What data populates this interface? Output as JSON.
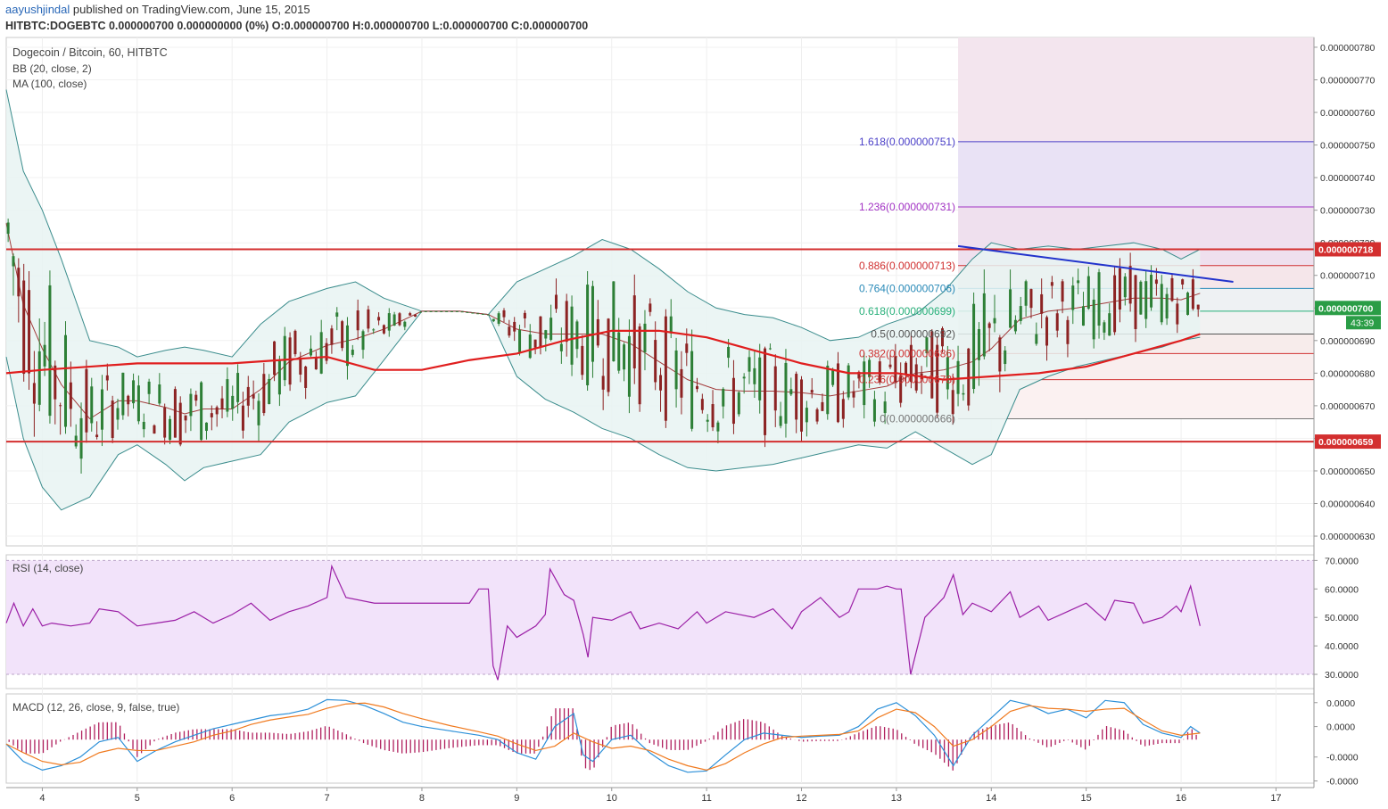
{
  "header": {
    "author": "aayushjindal",
    "published": " published on TradingView.com, June 15, 2015",
    "quote": "HITBTC:DOGEBTC 0.000000700 0.000000000 (0%) O:0.000000700 H:0.000000700 L:0.000000700 C:0.000000700"
  },
  "legend": {
    "symbol": "Dogecoin / Bitcoin, 60, HITBTC",
    "bb": "BB (20, close, 2)",
    "ma": "MA (100, close)",
    "rsi": "RSI (14, close)",
    "macd": "MACD (12, 26, close, 9, false, true)"
  },
  "colors": {
    "up": "#2d7f36",
    "down": "#8c2323",
    "ma": "#e01e1e",
    "bb": "#3a8c8c",
    "bb_fill": "#e7f3f2",
    "hline": "#d32f2f",
    "trendline": "#2233cc",
    "rsi": "#9b1fa6",
    "rsi_bg": "#f2e3fa",
    "macd": "#2b8fd8",
    "signal": "#f07a1f",
    "hist": "#b0205e"
  },
  "chart_data": [
    {
      "type": "candlestick",
      "title": "Dogecoin / Bitcoin, 60, HITBTC",
      "x_ticks": [
        "4",
        "5",
        "6",
        "7",
        "8",
        "9",
        "10",
        "11",
        "12",
        "13",
        "14",
        "15",
        "16",
        "17"
      ],
      "y_ticks": [
        "0.000000780",
        "0.000000770",
        "0.000000760",
        "0.000000750",
        "0.000000740",
        "0.000000730",
        "0.000000720",
        "0.000000710",
        "0.000000700",
        "0.000000690",
        "0.000000680",
        "0.000000670",
        "0.000000660",
        "0.000000650",
        "0.000000640",
        "0.000000630"
      ],
      "ylim": [
        6.27e-07,
        7.83e-07
      ],
      "xlim": [
        3.62,
        17.4
      ],
      "series": [
        {
          "name": "BB (20, close, 2)",
          "kind": "band",
          "x": [
            3.62,
            3.8,
            4.0,
            4.2,
            4.5,
            4.8,
            5.0,
            5.3,
            5.5,
            5.7,
            6.0,
            6.3,
            6.6,
            7.0,
            7.3,
            7.6,
            8.0,
            8.4,
            8.7,
            9.0,
            9.3,
            9.6,
            9.9,
            10.2,
            10.5,
            10.8,
            11.1,
            11.4,
            11.7,
            12.0,
            12.3,
            12.6,
            12.9,
            13.2,
            13.5,
            13.8,
            14.0,
            14.3,
            14.6,
            14.9,
            15.2,
            15.5,
            15.8,
            16.0,
            16.2
          ],
          "upper": [
            7.67e-07,
            7.42e-07,
            7.3e-07,
            7.15e-07,
            6.9e-07,
            6.88e-07,
            6.85e-07,
            6.87e-07,
            6.88e-07,
            6.87e-07,
            6.85e-07,
            6.95e-07,
            7.02e-07,
            7.06e-07,
            7.08e-07,
            7.03e-07,
            6.99e-07,
            6.99e-07,
            6.98e-07,
            7.08e-07,
            7.12e-07,
            7.16e-07,
            7.21e-07,
            7.18e-07,
            7.12e-07,
            7.05e-07,
            7e-07,
            6.98e-07,
            6.97e-07,
            6.94e-07,
            6.9e-07,
            6.91e-07,
            6.95e-07,
            6.98e-07,
            7.05e-07,
            7.15e-07,
            7.2e-07,
            7.18e-07,
            7.19e-07,
            7.18e-07,
            7.19e-07,
            7.2e-07,
            7.18e-07,
            7.15e-07,
            7.18e-07
          ],
          "lower": [
            6.85e-07,
            6.6e-07,
            6.45e-07,
            6.38e-07,
            6.42e-07,
            6.55e-07,
            6.58e-07,
            6.52e-07,
            6.47e-07,
            6.51e-07,
            6.53e-07,
            6.55e-07,
            6.65e-07,
            6.71e-07,
            6.73e-07,
            6.84e-07,
            6.99e-07,
            6.99e-07,
            6.98e-07,
            6.79e-07,
            6.72e-07,
            6.68e-07,
            6.63e-07,
            6.6e-07,
            6.55e-07,
            6.51e-07,
            6.5e-07,
            6.51e-07,
            6.52e-07,
            6.54e-07,
            6.56e-07,
            6.58e-07,
            6.57e-07,
            6.62e-07,
            6.57e-07,
            6.52e-07,
            6.55e-07,
            6.75e-07,
            6.79e-07,
            6.82e-07,
            6.84e-07,
            6.86e-07,
            6.88e-07,
            6.9e-07,
            6.91e-07
          ]
        },
        {
          "name": "MA (100, close)",
          "kind": "line",
          "x": [
            3.62,
            4.0,
            4.5,
            5.0,
            5.5,
            6.0,
            6.5,
            7.0,
            7.5,
            8.0,
            8.5,
            9.0,
            9.5,
            10.0,
            10.5,
            11.0,
            11.5,
            12.0,
            12.5,
            13.0,
            13.5,
            14.0,
            14.5,
            15.0,
            15.5,
            16.0,
            16.2
          ],
          "y": [
            6.8e-07,
            6.81e-07,
            6.82e-07,
            6.83e-07,
            6.83e-07,
            6.83e-07,
            6.84e-07,
            6.85e-07,
            6.81e-07,
            6.81e-07,
            6.84e-07,
            6.86e-07,
            6.9e-07,
            6.93e-07,
            6.93e-07,
            6.91e-07,
            6.87e-07,
            6.83e-07,
            6.8e-07,
            6.8e-07,
            6.78e-07,
            6.79e-07,
            6.8e-07,
            6.82e-07,
            6.86e-07,
            6.9e-07,
            6.92e-07
          ]
        }
      ],
      "horizontal_lines": [
        {
          "label": "0.000000718",
          "value": 7.18e-07
        },
        {
          "label": "0.000000659",
          "value": 6.59e-07
        }
      ],
      "trendline": {
        "x": [
          13.65,
          16.55
        ],
        "y": [
          7.19e-07,
          7.08e-07
        ]
      },
      "price_marker": {
        "label": "0.000000700",
        "countdown": "43:39",
        "value": 7e-07
      },
      "fibonacci": {
        "x_start": 13.65,
        "levels": [
          {
            "label": "1.618(0.000000751)",
            "value": 7.51e-07,
            "color": "#4a3fc8"
          },
          {
            "label": "1.236(0.000000731)",
            "value": 7.31e-07,
            "color": "#a232c4"
          },
          {
            "label": "0.886(0.000000713)",
            "value": 7.13e-07,
            "color": "#d03030"
          },
          {
            "label": "0.764(0.000000706)",
            "value": 7.06e-07,
            "color": "#2a8ab8"
          },
          {
            "label": "0.618(0.000000699)",
            "value": 6.99e-07,
            "color": "#28b07a"
          },
          {
            "label": "0.5(0.000000692)",
            "value": 6.92e-07,
            "color": "#555555"
          },
          {
            "label": "0.382(0.000000686)",
            "value": 6.86e-07,
            "color": "#d03030"
          },
          {
            "label": "0.236(0.000000678)",
            "value": 6.78e-07,
            "color": "#d03030"
          },
          {
            "label": "0(0.000000666)",
            "value": 6.66e-07,
            "color": "#777777"
          }
        ]
      }
    },
    {
      "type": "line",
      "title": "RSI (14, close)",
      "y_ticks": [
        "70.0000",
        "60.0000",
        "50.0000",
        "40.0000",
        "30.0000"
      ],
      "ylim": [
        25,
        72
      ],
      "bands": [
        30,
        70
      ],
      "series": [
        {
          "name": "RSI (14, close)",
          "x": [
            3.62,
            3.7,
            3.8,
            3.9,
            4.0,
            4.1,
            4.3,
            4.5,
            4.6,
            4.8,
            5.0,
            5.2,
            5.4,
            5.6,
            5.8,
            6.0,
            6.2,
            6.4,
            6.6,
            6.8,
            7.0,
            7.05,
            7.2,
            7.5,
            8.0,
            8.5,
            8.6,
            8.7,
            8.75,
            8.8,
            8.9,
            9.0,
            9.2,
            9.3,
            9.35,
            9.5,
            9.6,
            9.7,
            9.75,
            9.8,
            10.0,
            10.2,
            10.3,
            10.5,
            10.7,
            10.9,
            11.0,
            11.2,
            11.5,
            11.7,
            11.9,
            12.0,
            12.2,
            12.4,
            12.5,
            12.6,
            12.8,
            12.9,
            13.0,
            13.05,
            13.15,
            13.3,
            13.5,
            13.6,
            13.7,
            13.8,
            14.0,
            14.2,
            14.3,
            14.5,
            14.6,
            14.8,
            15.0,
            15.2,
            15.3,
            15.5,
            15.6,
            15.8,
            15.95,
            16.0,
            16.1,
            16.2
          ],
          "y": [
            48,
            55,
            47,
            53,
            47,
            48,
            47,
            48,
            53,
            52,
            47,
            48,
            49,
            52,
            48,
            51,
            55,
            49,
            52,
            54,
            57,
            68,
            57,
            55,
            55,
            55,
            60,
            60,
            33,
            28,
            47,
            43,
            47,
            51,
            67,
            58,
            56,
            44,
            36,
            50,
            49,
            52,
            46,
            48,
            46,
            52,
            48,
            52,
            50,
            53,
            46,
            52,
            57,
            50,
            52,
            60,
            60,
            61,
            60,
            60,
            30,
            50,
            57,
            65,
            51,
            55,
            52,
            59,
            50,
            54,
            49,
            52,
            55,
            49,
            56,
            55,
            48,
            50,
            54,
            52,
            61,
            47
          ]
        }
      ]
    },
    {
      "type": "line",
      "title": "MACD (12, 26, close, 9, false, true)",
      "y_ticks": [
        "0.0000",
        "0.0000",
        "-0.0000",
        "-0.0000"
      ],
      "ylim": [
        -1.0,
        1.05
      ],
      "series": [
        {
          "name": "MACD",
          "x": [
            3.62,
            3.8,
            4.0,
            4.2,
            4.4,
            4.6,
            4.8,
            5.0,
            5.2,
            5.4,
            5.6,
            5.8,
            6.0,
            6.2,
            6.4,
            6.6,
            6.8,
            7.0,
            7.2,
            7.4,
            7.6,
            7.8,
            8.0,
            8.3,
            8.6,
            8.8,
            9.0,
            9.2,
            9.4,
            9.6,
            9.7,
            9.8,
            10.0,
            10.2,
            10.4,
            10.6,
            10.8,
            11.0,
            11.2,
            11.4,
            11.6,
            11.8,
            12.0,
            12.2,
            12.4,
            12.6,
            12.8,
            13.0,
            13.2,
            13.4,
            13.6,
            13.8,
            14.0,
            14.2,
            14.4,
            14.6,
            14.8,
            15.0,
            15.2,
            15.4,
            15.6,
            15.8,
            16.0,
            16.1,
            16.2
          ],
          "y": [
            -0.1,
            -0.5,
            -0.7,
            -0.6,
            -0.4,
            -0.05,
            0.05,
            -0.5,
            -0.25,
            -0.05,
            0.1,
            0.25,
            0.35,
            0.45,
            0.55,
            0.6,
            0.7,
            0.92,
            0.9,
            0.78,
            0.6,
            0.4,
            0.3,
            0.2,
            0.1,
            0.0,
            -0.3,
            -0.45,
            0.3,
            0.6,
            -0.35,
            -0.5,
            0.0,
            0.1,
            -0.3,
            -0.6,
            -0.75,
            -0.72,
            -0.35,
            0.0,
            0.15,
            0.1,
            0.05,
            0.08,
            0.1,
            0.3,
            0.7,
            0.85,
            0.55,
            0.1,
            -0.6,
            0.1,
            0.5,
            0.9,
            0.8,
            0.6,
            0.7,
            0.5,
            0.9,
            0.85,
            0.35,
            0.15,
            0.05,
            0.3,
            0.15
          ]
        },
        {
          "name": "Signal",
          "x": [
            3.62,
            3.8,
            4.0,
            4.2,
            4.4,
            4.6,
            4.8,
            5.0,
            5.2,
            5.4,
            5.6,
            5.8,
            6.0,
            6.2,
            6.4,
            6.6,
            6.8,
            7.0,
            7.2,
            7.4,
            7.6,
            7.8,
            8.0,
            8.3,
            8.6,
            8.8,
            9.0,
            9.2,
            9.4,
            9.6,
            9.8,
            10.0,
            10.2,
            10.4,
            10.6,
            10.8,
            11.0,
            11.2,
            11.4,
            11.6,
            11.8,
            12.0,
            12.2,
            12.4,
            12.6,
            12.8,
            13.0,
            13.2,
            13.4,
            13.6,
            13.8,
            14.0,
            14.2,
            14.4,
            14.6,
            14.8,
            15.0,
            15.2,
            15.4,
            15.6,
            15.8,
            16.0,
            16.2
          ],
          "y": [
            -0.1,
            -0.3,
            -0.5,
            -0.58,
            -0.52,
            -0.3,
            -0.2,
            -0.25,
            -0.25,
            -0.15,
            -0.05,
            0.1,
            0.2,
            0.35,
            0.45,
            0.52,
            0.58,
            0.72,
            0.82,
            0.84,
            0.75,
            0.6,
            0.48,
            0.32,
            0.18,
            0.08,
            -0.1,
            -0.25,
            -0.15,
            0.15,
            -0.05,
            -0.2,
            -0.15,
            -0.25,
            -0.45,
            -0.6,
            -0.7,
            -0.55,
            -0.3,
            -0.1,
            0.05,
            0.08,
            0.1,
            0.12,
            0.2,
            0.5,
            0.7,
            0.62,
            0.3,
            -0.15,
            0.0,
            0.3,
            0.65,
            0.78,
            0.72,
            0.7,
            0.65,
            0.7,
            0.72,
            0.45,
            0.2,
            0.1,
            0.15
          ]
        }
      ]
    }
  ]
}
